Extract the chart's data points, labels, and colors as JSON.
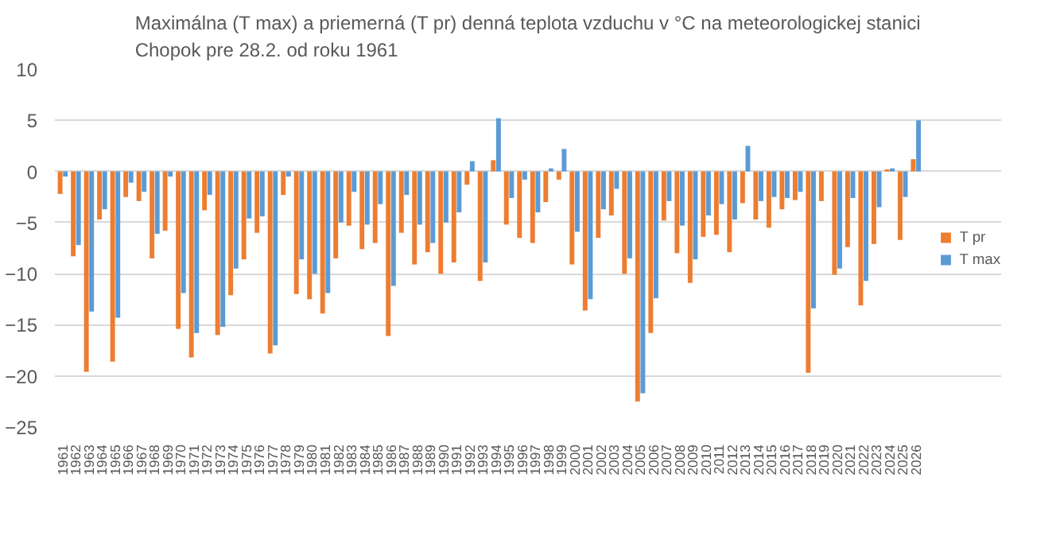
{
  "chart_data": {
    "type": "bar",
    "title": "Maximálna (T max) a priemerná (T pr) denná teplota vzduchu v °C na meteorologickej stanici\nChopok pre 28.2. od roku 1961",
    "categories": [
      "1961",
      "1962",
      "1963",
      "1964",
      "1965",
      "1966",
      "1967",
      "1968",
      "1969",
      "1970",
      "1971",
      "1972",
      "1973",
      "1974",
      "1975",
      "1976",
      "1977",
      "1978",
      "1979",
      "1980",
      "1981",
      "1982",
      "1983",
      "1984",
      "1985",
      "1986",
      "1987",
      "1988",
      "1989",
      "1990",
      "1991",
      "1992",
      "1993",
      "1994",
      "1995",
      "1996",
      "1997",
      "1998",
      "1999",
      "2000",
      "2001",
      "2002",
      "2003",
      "2004",
      "2005",
      "2006",
      "2007",
      "2008",
      "2009",
      "2010",
      "2011",
      "2012",
      "2013",
      "2014",
      "2015",
      "2016",
      "2017",
      "2018",
      "2019",
      "2020",
      "2021",
      "2022",
      "2023",
      "2024",
      "2025",
      "2026"
    ],
    "series": [
      {
        "name": "T pr",
        "color": "#ed7d31",
        "values": [
          -2.2,
          -8.3,
          -19.6,
          -4.7,
          -18.6,
          -2.5,
          -2.9,
          -8.5,
          -5.8,
          -15.4,
          -18.2,
          -3.8,
          -16.0,
          -12.1,
          -8.6,
          -6.0,
          -17.8,
          -2.3,
          -12.0,
          -12.5,
          -13.9,
          -8.5,
          -5.3,
          -7.6,
          -7.0,
          -16.1,
          -6.0,
          -9.1,
          -7.9,
          -10.0,
          -8.9,
          -1.3,
          -10.7,
          1.1,
          -5.2,
          -6.5,
          -7.0,
          -3.0,
          -0.8,
          -9.1,
          -13.6,
          -6.5,
          -4.3,
          -10.0,
          -22.5,
          -15.8,
          -4.8,
          -8.0,
          -10.9,
          -6.4,
          -6.2,
          -7.9,
          -3.1,
          -4.7,
          -5.5,
          -3.7,
          -2.8,
          -19.7,
          -2.9,
          -10.1,
          -7.4,
          -13.1,
          -7.1,
          0.2,
          -6.7,
          1.2
        ]
      },
      {
        "name": "T max",
        "color": "#5b9bd5",
        "values": [
          -0.5,
          -7.2,
          -13.7,
          -3.7,
          -14.3,
          -1.1,
          -2.0,
          -6.1,
          -0.5,
          -11.9,
          -15.8,
          -2.3,
          -15.2,
          -9.5,
          -4.6,
          -4.4,
          -17.0,
          -0.5,
          -8.6,
          -10.0,
          -11.9,
          -5.0,
          -2.0,
          -5.2,
          -3.2,
          -11.2,
          -2.3,
          -5.2,
          -7.0,
          -5.0,
          -4.0,
          1.0,
          -8.9,
          5.2,
          -2.6,
          -0.8,
          -4.0,
          0.3,
          2.2,
          -5.9,
          -12.5,
          -3.7,
          -1.7,
          -8.5,
          -21.7,
          -12.4,
          -2.9,
          -5.3,
          -8.6,
          -4.3,
          -3.2,
          -4.7,
          2.5,
          -2.9,
          -2.5,
          -2.6,
          -2.0,
          -13.4,
          null,
          -9.5,
          -2.6,
          -10.7,
          -3.5,
          0.3,
          -2.5,
          5.0
        ]
      }
    ],
    "ylim": [
      -25,
      10
    ],
    "yticks": [
      -25,
      -20,
      -15,
      -10,
      -5,
      0,
      5,
      10
    ],
    "grid": "y",
    "legend": "right"
  }
}
